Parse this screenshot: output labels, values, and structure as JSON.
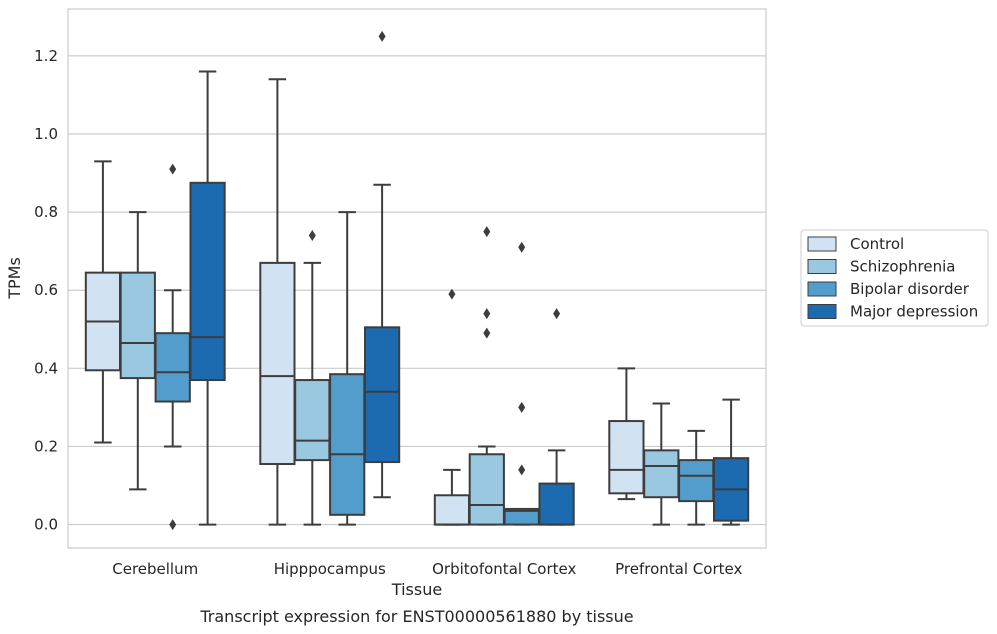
{
  "chart_data": {
    "type": "box",
    "xlabel": "Tissue",
    "ylabel": "TPMs",
    "caption": "Transcript expression for ENST00000561880 by tissue",
    "ylim": [
      -0.06,
      1.32
    ],
    "yticks": [
      0.0,
      0.2,
      0.4,
      0.6,
      0.8,
      1.0,
      1.2
    ],
    "ytick_labels": [
      "0.0",
      "0.2",
      "0.4",
      "0.6",
      "0.8",
      "1.0",
      "1.2"
    ],
    "grid": "horizontal",
    "legend_position": "right",
    "categories": [
      "Cerebellum",
      "Hipppocampus",
      "Orbitofontal Cortex",
      "Prefrontal Cortex"
    ],
    "series": [
      {
        "name": "Control",
        "color": "#d1e3f3",
        "boxes": [
          {
            "whisker_low": 0.21,
            "q1": 0.395,
            "median": 0.52,
            "q3": 0.645,
            "whisker_high": 0.93,
            "outliers": []
          },
          {
            "whisker_low": 0.0,
            "q1": 0.155,
            "median": 0.38,
            "q3": 0.67,
            "whisker_high": 1.14,
            "outliers": []
          },
          {
            "whisker_low": 0.0,
            "q1": 0.0,
            "median": 0.0,
            "q3": 0.075,
            "whisker_high": 0.14,
            "outliers": [
              0.59
            ]
          },
          {
            "whisker_low": 0.065,
            "q1": 0.08,
            "median": 0.14,
            "q3": 0.265,
            "whisker_high": 0.4,
            "outliers": []
          }
        ]
      },
      {
        "name": "Schizophrenia",
        "color": "#9ac8e0",
        "boxes": [
          {
            "whisker_low": 0.09,
            "q1": 0.375,
            "median": 0.465,
            "q3": 0.645,
            "whisker_high": 0.8,
            "outliers": []
          },
          {
            "whisker_low": 0.0,
            "q1": 0.165,
            "median": 0.215,
            "q3": 0.37,
            "whisker_high": 0.67,
            "outliers": [
              0.74
            ]
          },
          {
            "whisker_low": 0.0,
            "q1": 0.0,
            "median": 0.05,
            "q3": 0.18,
            "whisker_high": 0.2,
            "outliers": [
              0.49,
              0.54,
              0.75
            ]
          },
          {
            "whisker_low": 0.0,
            "q1": 0.07,
            "median": 0.15,
            "q3": 0.19,
            "whisker_high": 0.31,
            "outliers": []
          }
        ]
      },
      {
        "name": "Bipolar disorder",
        "color": "#529dcc",
        "boxes": [
          {
            "whisker_low": 0.2,
            "q1": 0.315,
            "median": 0.39,
            "q3": 0.49,
            "whisker_high": 0.6,
            "outliers": [
              0.0,
              0.91
            ]
          },
          {
            "whisker_low": 0.0,
            "q1": 0.025,
            "median": 0.18,
            "q3": 0.385,
            "whisker_high": 0.8,
            "outliers": []
          },
          {
            "whisker_low": 0.0,
            "q1": 0.0,
            "median": 0.035,
            "q3": 0.04,
            "whisker_high": 0.04,
            "outliers": [
              0.14,
              0.3,
              0.71
            ]
          },
          {
            "whisker_low": 0.0,
            "q1": 0.06,
            "median": 0.125,
            "q3": 0.165,
            "whisker_high": 0.24,
            "outliers": []
          }
        ]
      },
      {
        "name": "Major depression",
        "color": "#1c6aaf",
        "boxes": [
          {
            "whisker_low": 0.0,
            "q1": 0.37,
            "median": 0.48,
            "q3": 0.875,
            "whisker_high": 1.16,
            "outliers": []
          },
          {
            "whisker_low": 0.07,
            "q1": 0.16,
            "median": 0.34,
            "q3": 0.505,
            "whisker_high": 0.87,
            "outliers": [
              1.25
            ]
          },
          {
            "whisker_low": 0.0,
            "q1": 0.0,
            "median": 0.0,
            "q3": 0.105,
            "whisker_high": 0.19,
            "outliers": [
              0.54
            ]
          },
          {
            "whisker_low": 0.0,
            "q1": 0.01,
            "median": 0.09,
            "q3": 0.17,
            "whisker_high": 0.32,
            "outliers": []
          }
        ]
      }
    ]
  }
}
